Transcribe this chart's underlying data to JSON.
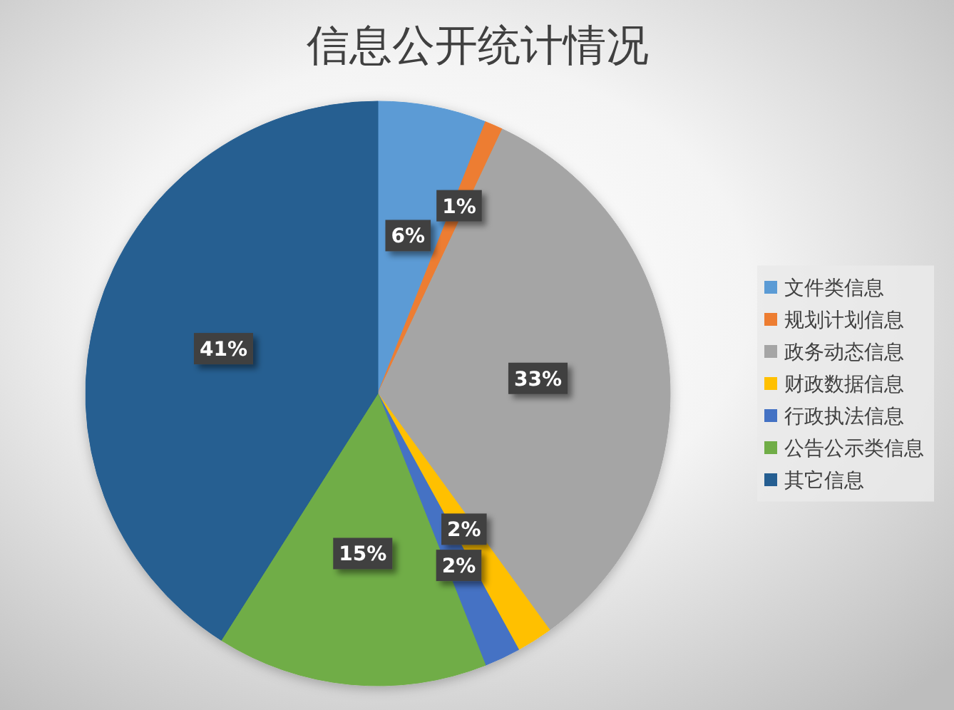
{
  "chart_data": {
    "type": "pie",
    "title": "信息公开统计情况",
    "categories": [
      "文件类信息",
      "规划计划信息",
      "政务动态信息",
      "财政数据信息",
      "行政执法信息",
      "公告公示类信息",
      "其它信息"
    ],
    "values": [
      6,
      1,
      33,
      2,
      2,
      15,
      41
    ],
    "value_labels": [
      "6%",
      "1%",
      "33%",
      "2%",
      "2%",
      "15%",
      "41%"
    ],
    "colors": [
      "#5b9bd5",
      "#ed7d31",
      "#a5a5a5",
      "#ffc000",
      "#4472c4",
      "#70ad47",
      "#255e91"
    ],
    "legend": "right"
  }
}
